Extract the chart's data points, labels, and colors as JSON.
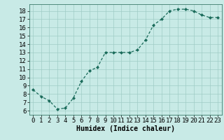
{
  "x": [
    0,
    1,
    2,
    3,
    4,
    5,
    6,
    7,
    8,
    9,
    10,
    11,
    12,
    13,
    14,
    15,
    16,
    17,
    18,
    19,
    20,
    21,
    22,
    23
  ],
  "y": [
    8.5,
    7.7,
    7.2,
    6.2,
    6.3,
    7.5,
    9.5,
    10.8,
    11.2,
    13.0,
    13.0,
    13.0,
    13.0,
    13.3,
    14.5,
    16.3,
    17.0,
    18.0,
    18.2,
    18.2,
    18.0,
    17.5,
    17.2,
    17.2
  ],
  "line_color": "#1a6b5a",
  "marker_color": "#1a6b5a",
  "bg_color": "#c8eae6",
  "grid_color": "#9fccc6",
  "xlabel": "Humidex (Indice chaleur)",
  "xlabel_fontsize": 7,
  "tick_fontsize": 6.5,
  "xlim": [
    -0.5,
    23.5
  ],
  "ylim": [
    5.5,
    18.8
  ],
  "yticks": [
    6,
    7,
    8,
    9,
    10,
    11,
    12,
    13,
    14,
    15,
    16,
    17,
    18
  ],
  "xticks": [
    0,
    1,
    2,
    3,
    4,
    5,
    6,
    7,
    8,
    9,
    10,
    11,
    12,
    13,
    14,
    15,
    16,
    17,
    18,
    19,
    20,
    21,
    22,
    23
  ]
}
